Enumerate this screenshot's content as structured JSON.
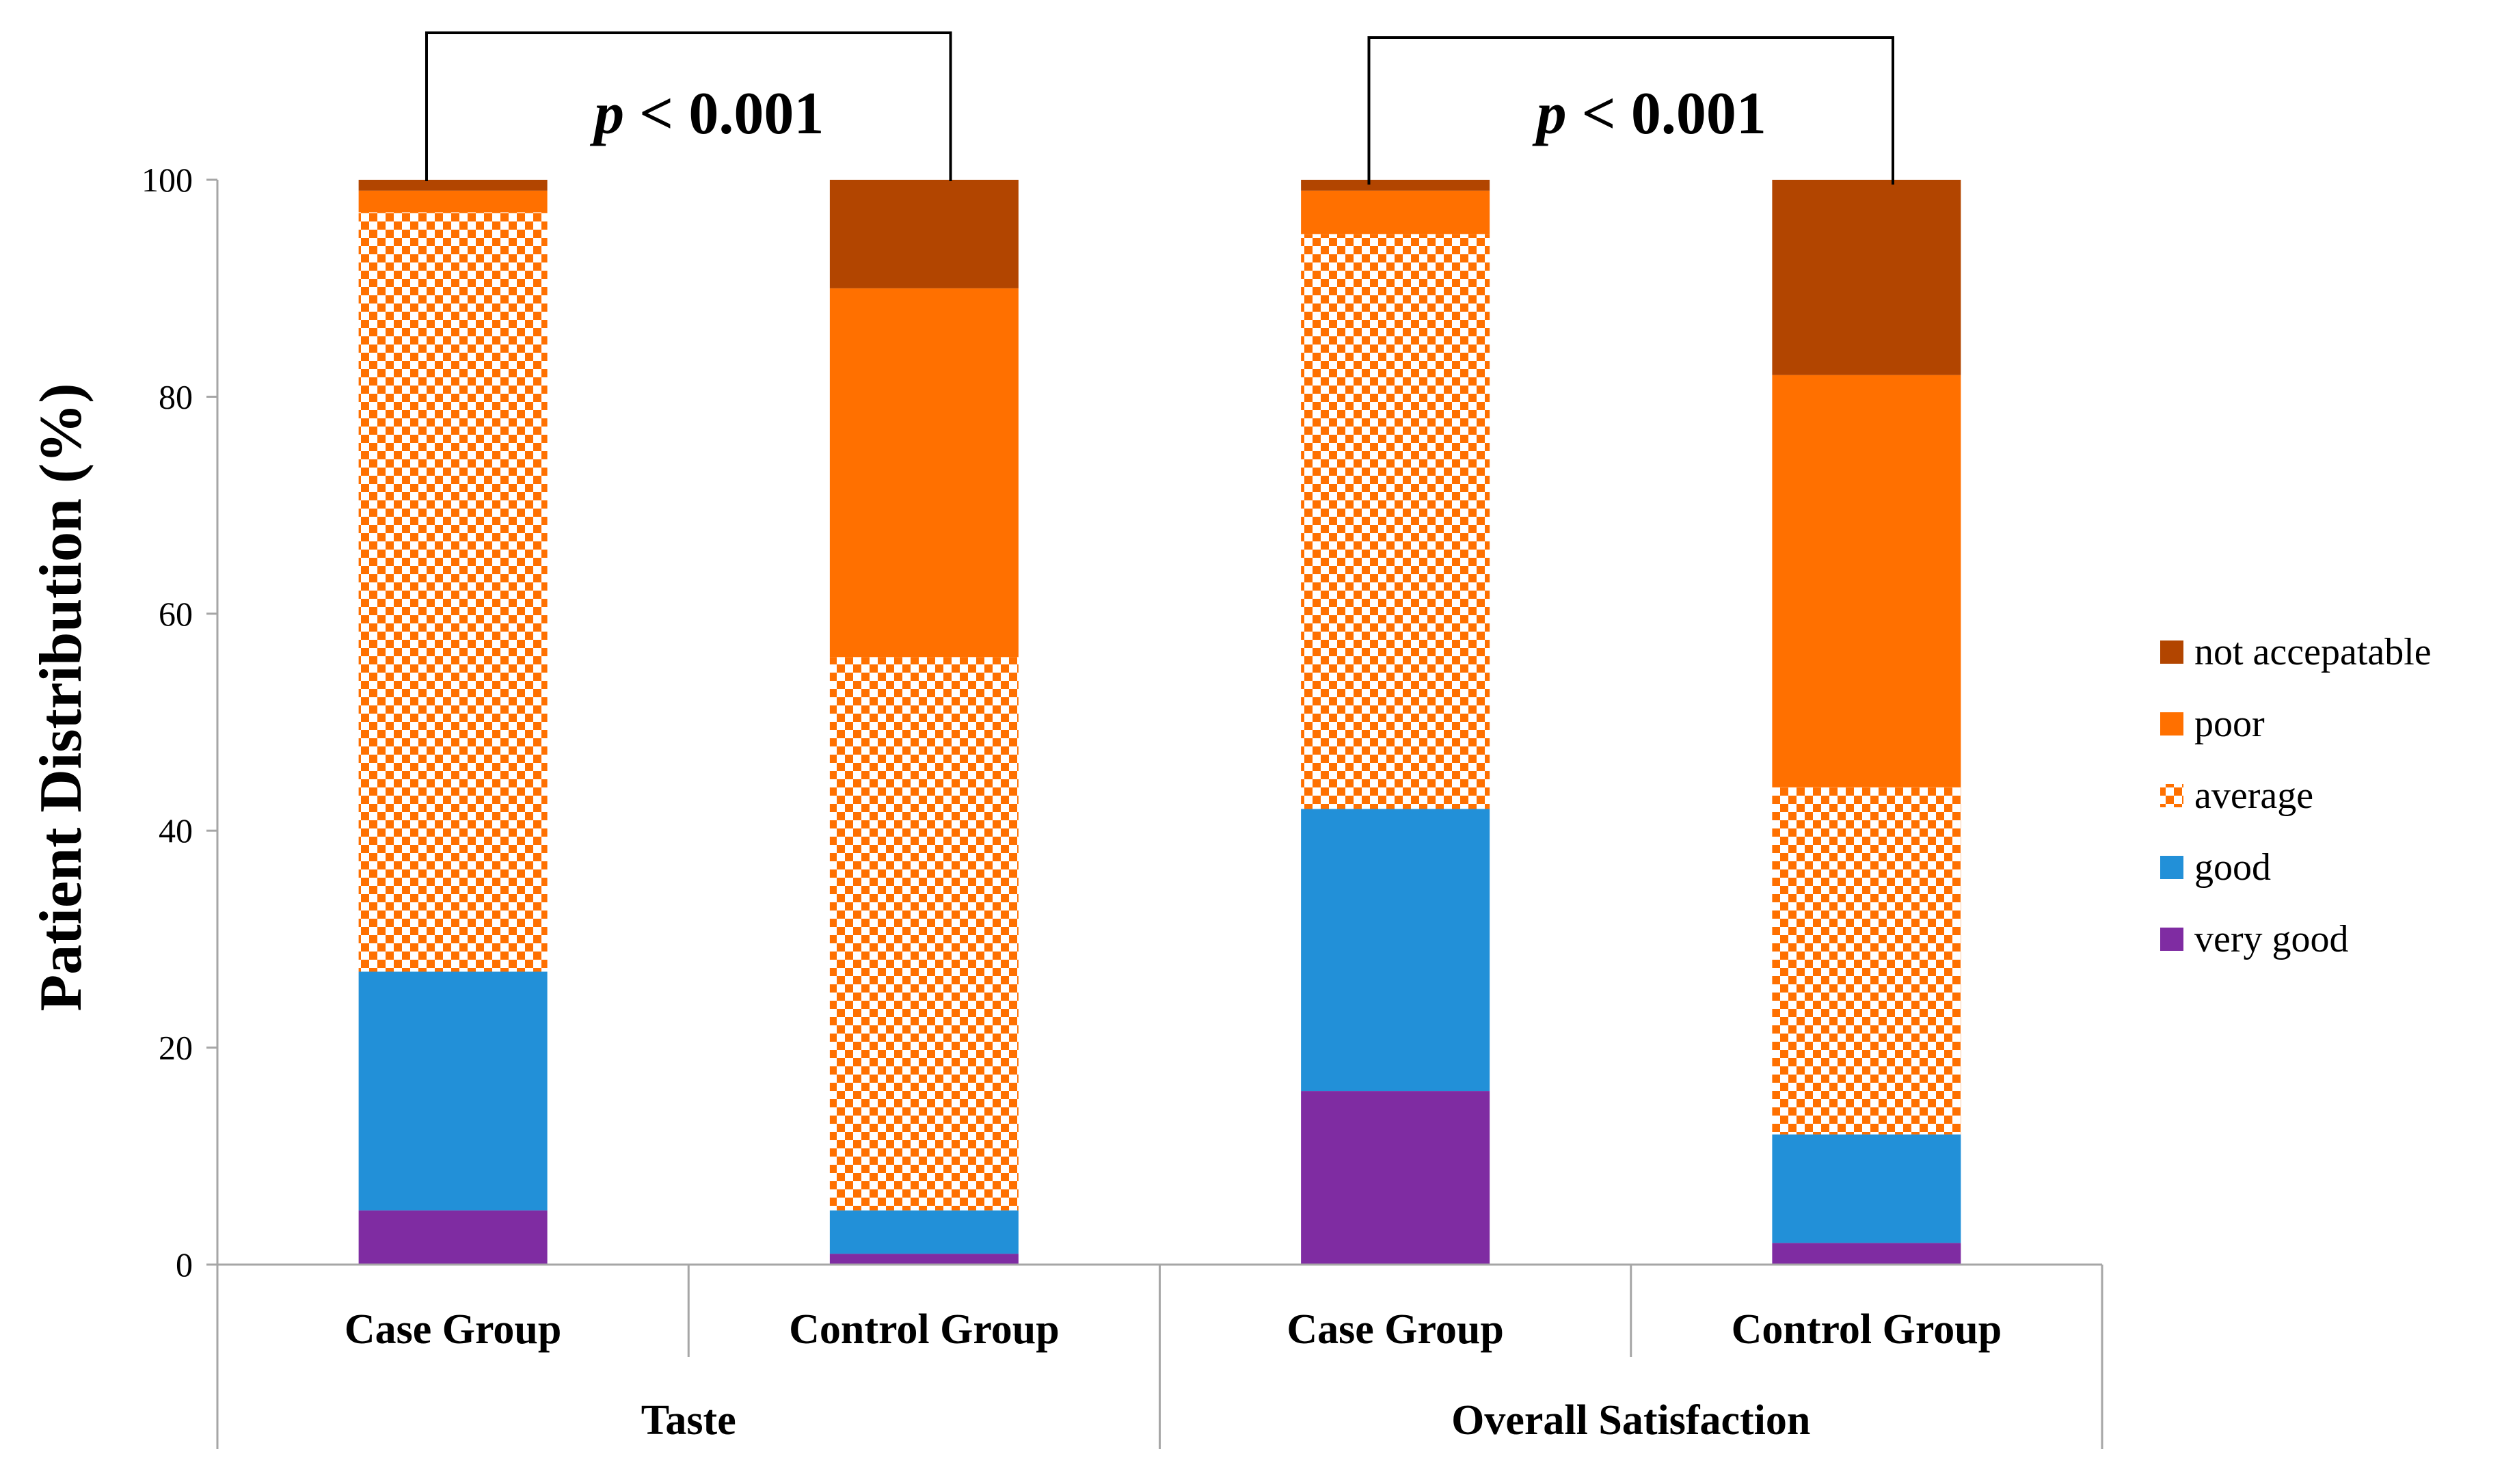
{
  "chart_data": {
    "type": "bar",
    "stacked": true,
    "title": "",
    "ylabel": "Patient Distribution (%)",
    "xlabel": "",
    "ylim": [
      0,
      100
    ],
    "yticks": [
      0,
      20,
      40,
      60,
      80,
      100
    ],
    "grid": false,
    "legend_position": "right",
    "groups": [
      {
        "label": "Taste",
        "categories": [
          "Case Group",
          "Control Group"
        ]
      },
      {
        "label": "Overall Satisfaction",
        "categories": [
          "Case Group",
          "Control Group"
        ]
      }
    ],
    "categories": [
      "Case Group",
      "Control Group",
      "Case Group",
      "Control Group"
    ],
    "series": [
      {
        "name": "very good",
        "color": "#7F2CA2",
        "pattern": "solid",
        "values": [
          5,
          1,
          16,
          2
        ]
      },
      {
        "name": "good",
        "color": "#2290D8",
        "pattern": "solid",
        "values": [
          22,
          4,
          26,
          10
        ]
      },
      {
        "name": "average",
        "color": "#FF7000",
        "pattern": "checker",
        "values": [
          70,
          51,
          53,
          32
        ]
      },
      {
        "name": "poor",
        "color": "#FF7000",
        "pattern": "solid",
        "values": [
          2,
          34,
          4,
          38
        ]
      },
      {
        "name": "not accepatable",
        "color": "#B24500",
        "pattern": "solid",
        "values": [
          1,
          10,
          1,
          18
        ]
      }
    ],
    "annotations": [
      {
        "text_italic": "p",
        "text_rest": " < 0.001",
        "spans_group": "Taste"
      },
      {
        "text_italic": "p",
        "text_rest": " < 0.001",
        "spans_group": "Overall Satisfaction"
      }
    ]
  }
}
